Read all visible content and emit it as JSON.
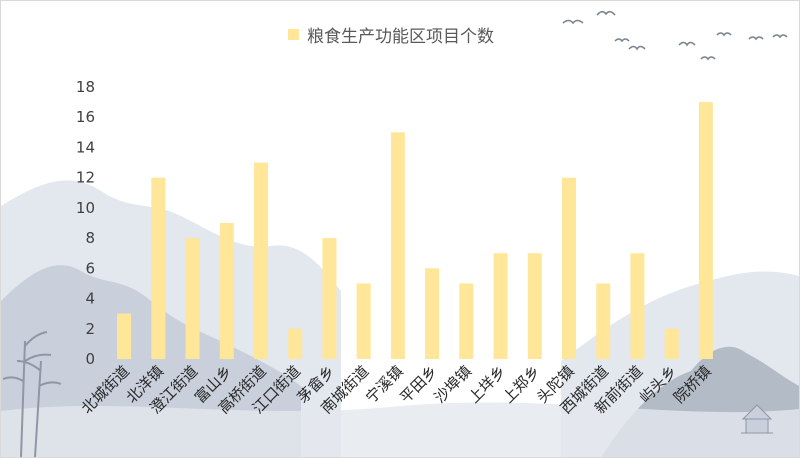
{
  "chart_data": {
    "type": "bar",
    "categories": [
      "北城街道",
      "北洋镇",
      "澄江街道",
      "富山乡",
      "高桥街道",
      "江口街道",
      "茅畲乡",
      "南城街道",
      "宁溪镇",
      "平田乡",
      "沙埠镇",
      "上垟乡",
      "上郑乡",
      "头陀镇",
      "西城街道",
      "新前街道",
      "屿头乡",
      "院桥镇"
    ],
    "series": [
      {
        "name": "粮食生产功能区项目个数",
        "values": [
          3,
          12,
          8,
          9,
          13,
          2,
          8,
          5,
          15,
          6,
          5,
          7,
          7,
          12,
          5,
          7,
          2,
          17
        ]
      }
    ],
    "ylim": [
      0,
      18
    ],
    "yticks": [
      0,
      2,
      4,
      6,
      8,
      10,
      12,
      14,
      16,
      18
    ],
    "grid": false,
    "legend_position": "top"
  },
  "colors": {
    "bar": "#FFE699",
    "background": "#ffffff",
    "mountain_light": "#e3e7ee",
    "mountain_mid": "#c9d0dc",
    "mountain_dark": "#8d97a6",
    "bird": "#7a8390"
  },
  "decorations": {
    "scene": "ink-wash-landscape",
    "icons": [
      "bird-icon",
      "bamboo-icon",
      "pavilion-icon"
    ]
  }
}
